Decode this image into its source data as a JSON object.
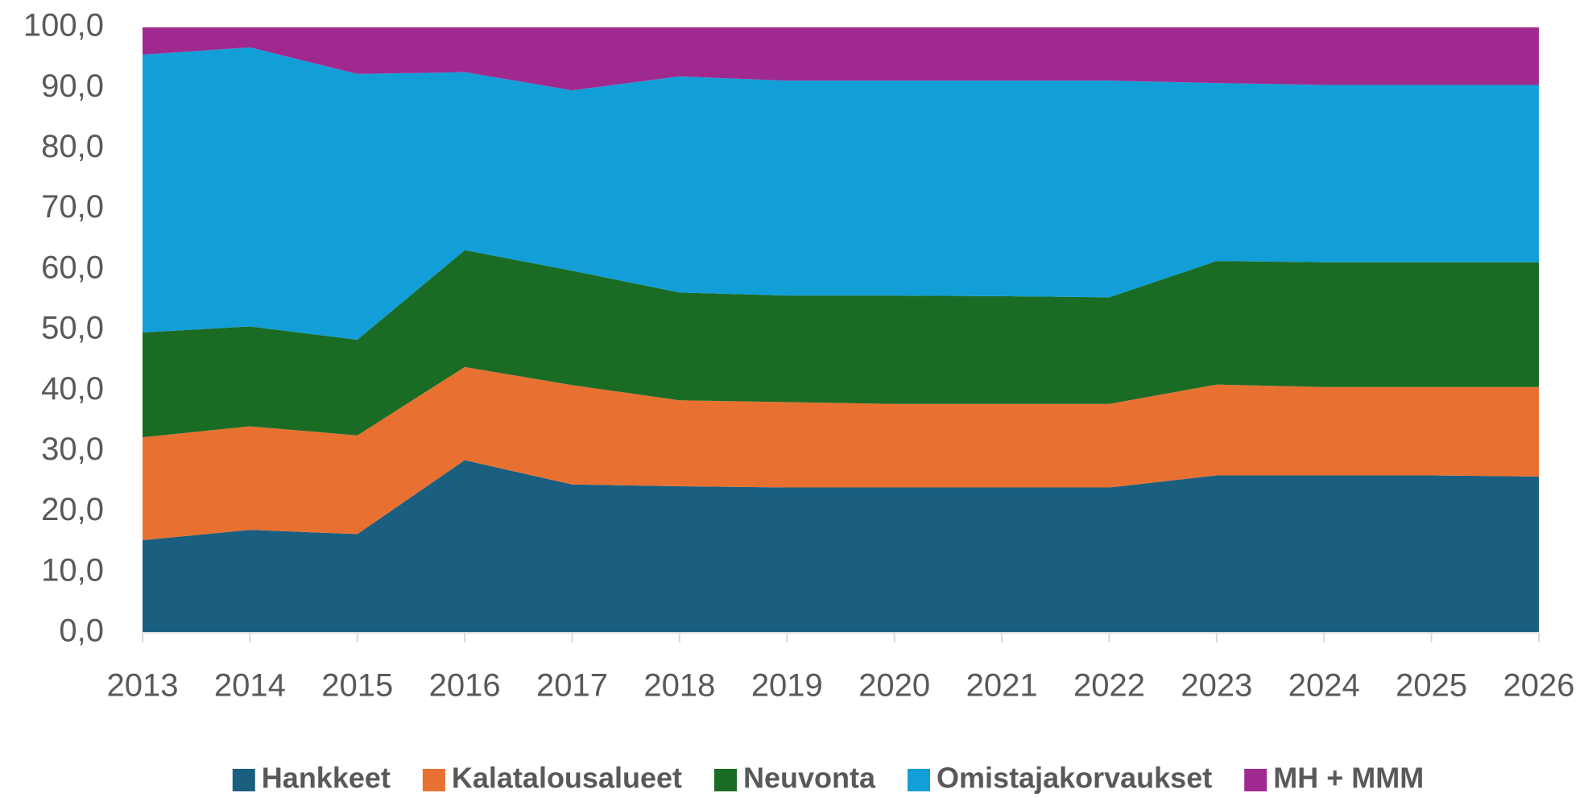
{
  "chart_data": {
    "type": "stacked_area",
    "categories": [
      "2013",
      "2014",
      "2015",
      "2016",
      "2017",
      "2018",
      "2019",
      "2020",
      "2021",
      "2022",
      "2023",
      "2024",
      "2025",
      "2026"
    ],
    "series": [
      {
        "name": "Hankkeet",
        "color": "#1a5e80",
        "values": [
          15.3,
          17.0,
          16.3,
          28.5,
          24.5,
          24.2,
          24.0,
          24.0,
          24.0,
          24.0,
          26.0,
          26.0,
          26.0,
          25.8
        ]
      },
      {
        "name": "Kalatalousalueet",
        "color": "#e87131",
        "values": [
          17.0,
          17.1,
          16.3,
          15.4,
          16.4,
          14.2,
          14.1,
          13.8,
          13.8,
          13.8,
          15.0,
          14.6,
          14.6,
          14.8
        ]
      },
      {
        "name": "Neuvonta",
        "color": "#1a6b24",
        "values": [
          17.3,
          16.5,
          15.8,
          19.3,
          18.9,
          17.8,
          17.6,
          17.9,
          17.8,
          17.6,
          20.4,
          20.6,
          20.6,
          20.6
        ]
      },
      {
        "name": "Omistajakorvaukset",
        "color": "#129fd8",
        "values": [
          45.9,
          46.1,
          43.9,
          29.4,
          29.8,
          35.7,
          35.5,
          35.5,
          35.6,
          35.8,
          29.4,
          29.3,
          29.3,
          29.3
        ]
      },
      {
        "name": "MH + MMM",
        "color": "#a0298f",
        "values": [
          4.5,
          3.3,
          7.7,
          7.4,
          10.4,
          8.1,
          8.8,
          8.8,
          8.8,
          8.8,
          9.2,
          9.5,
          9.5,
          9.5
        ]
      }
    ],
    "ylim": [
      0,
      100
    ],
    "yticks": [
      {
        "value": 0,
        "label": "0,0"
      },
      {
        "value": 10,
        "label": "10,0"
      },
      {
        "value": 20,
        "label": "20,0"
      },
      {
        "value": 30,
        "label": "30,0"
      },
      {
        "value": 40,
        "label": "40,0"
      },
      {
        "value": 50,
        "label": "50,0"
      },
      {
        "value": 60,
        "label": "60,0"
      },
      {
        "value": 70,
        "label": "70,0"
      },
      {
        "value": 80,
        "label": "80,0"
      },
      {
        "value": 90,
        "label": "90,0"
      },
      {
        "value": 100,
        "label": "100,0"
      }
    ],
    "grid": false,
    "legend": "bottom"
  }
}
